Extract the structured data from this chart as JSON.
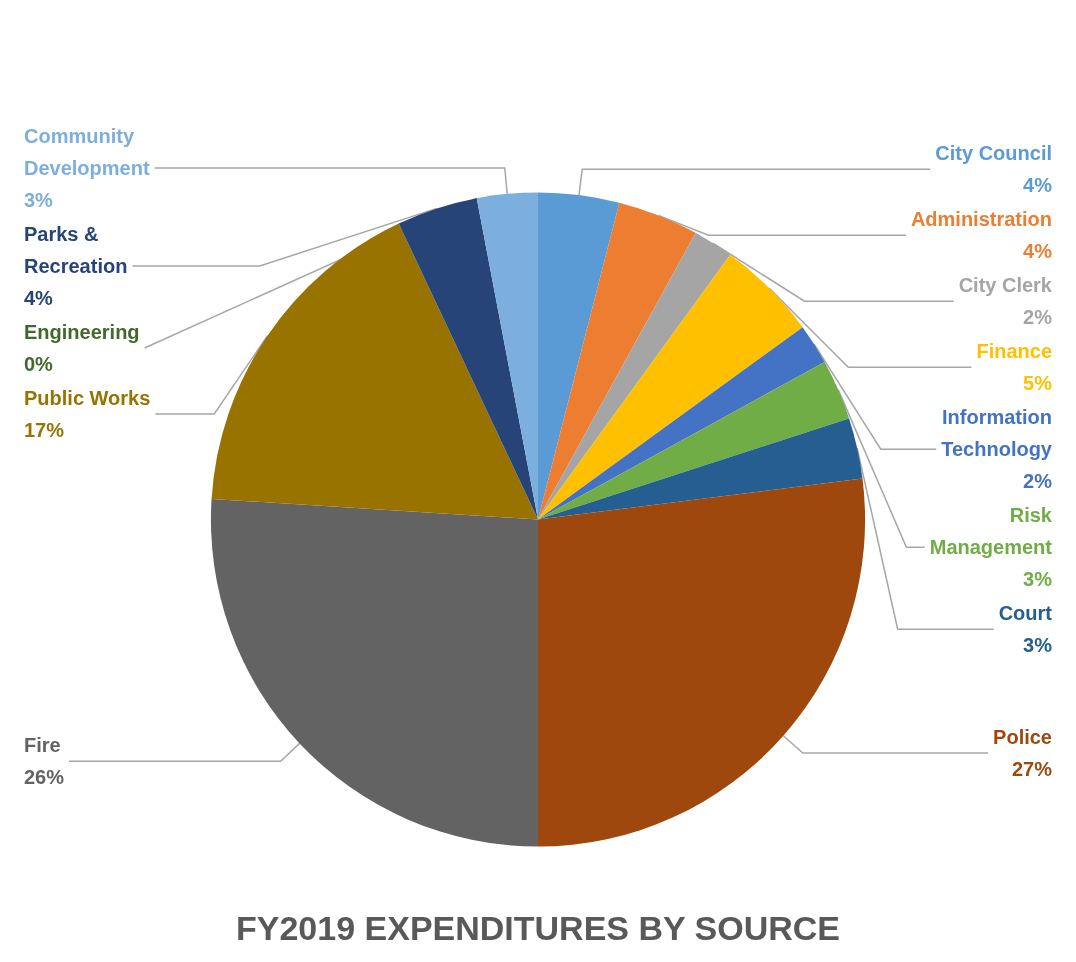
{
  "chart_data": {
    "type": "pie",
    "title": "FY2019 EXPENDITURES BY SOURCE",
    "categories": [
      "City Council",
      "Administration",
      "City Clerk",
      "Finance",
      "Information Technology",
      "Risk Management",
      "Court",
      "Police",
      "Fire",
      "Public Works",
      "Parks & Recreation",
      "Engineering",
      "Community Development"
    ],
    "values": [
      4,
      4,
      2,
      5,
      2,
      3,
      3,
      27,
      26,
      17,
      4,
      0,
      3
    ],
    "value_labels": [
      "4%",
      "4%",
      "2%",
      "5%",
      "2%",
      "3%",
      "3%",
      "27%",
      "26%",
      "17%",
      "4%",
      "0%",
      "3%"
    ],
    "colors": [
      "#5b9bd5",
      "#ed7d31",
      "#a5a5a5",
      "#ffc000",
      "#4472c4",
      "#70ad47",
      "#255e91",
      "#9e480e",
      "#636363",
      "#997300",
      "#264478",
      "#43682b",
      "#7cafdd"
    ],
    "legend": false
  }
}
